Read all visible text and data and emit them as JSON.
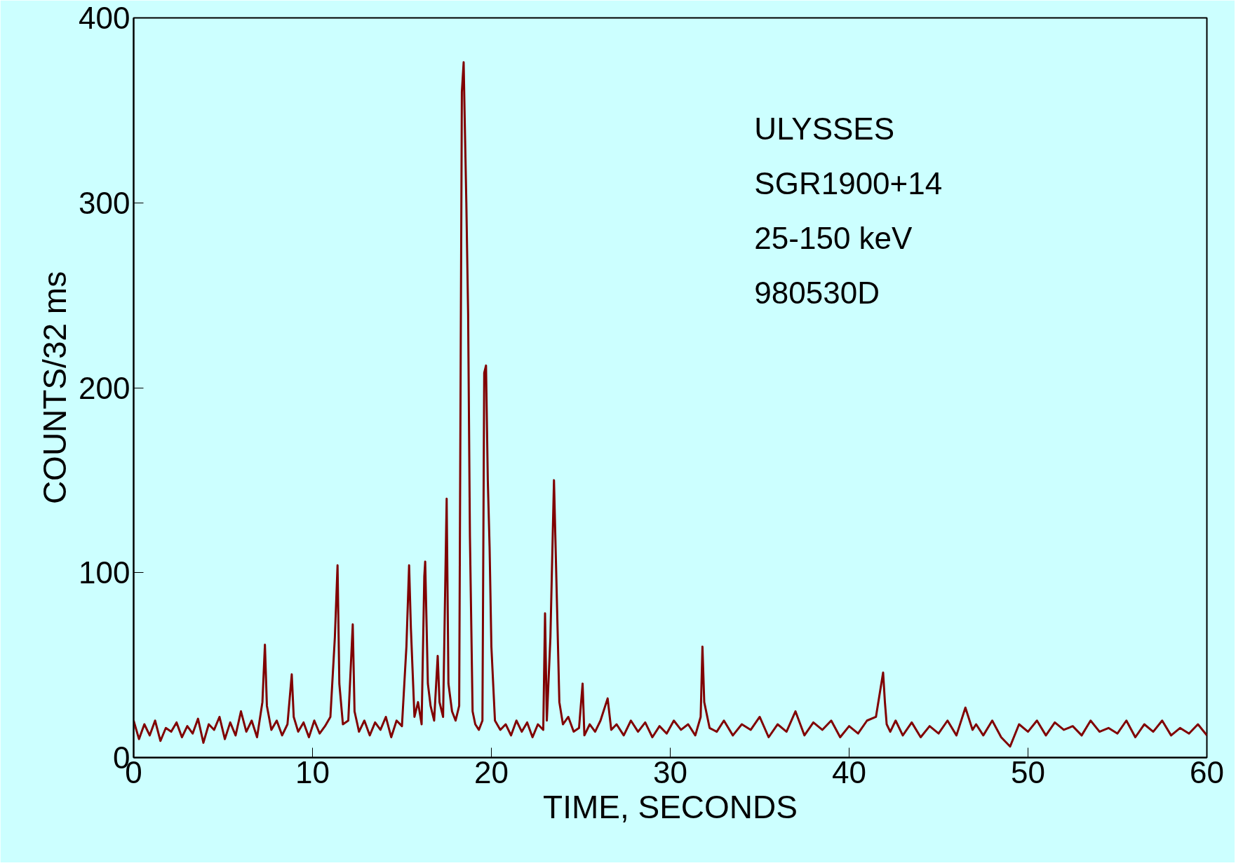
{
  "chart_data": {
    "type": "line",
    "xlabel": "TIME, SECONDS",
    "ylabel": "COUNTS/32 ms",
    "xlim": [
      0,
      60
    ],
    "ylim": [
      0,
      400
    ],
    "xticks": [
      0,
      10,
      20,
      30,
      40,
      50,
      60
    ],
    "yticks": [
      0,
      100,
      200,
      300,
      400
    ],
    "grid": false,
    "marker": "none",
    "line_style": "solid",
    "annotations": [
      "ULYSSES",
      "SGR1900+14",
      "25-150 keV",
      "980530D"
    ],
    "series": [
      {
        "color": "#800000",
        "x": [
          0,
          0.3,
          0.6,
          0.9,
          1.2,
          1.5,
          1.8,
          2.1,
          2.4,
          2.7,
          3.0,
          3.3,
          3.6,
          3.9,
          4.2,
          4.5,
          4.8,
          5.1,
          5.4,
          5.7,
          6.0,
          6.3,
          6.6,
          6.9,
          7.2,
          7.34,
          7.45,
          7.7,
          8.0,
          8.3,
          8.6,
          8.84,
          8.95,
          9.2,
          9.5,
          9.8,
          10.1,
          10.4,
          10.7,
          11.0,
          11.25,
          11.4,
          11.5,
          11.7,
          12.0,
          12.25,
          12.35,
          12.6,
          12.9,
          13.2,
          13.5,
          13.8,
          14.1,
          14.4,
          14.7,
          15.0,
          15.25,
          15.4,
          15.5,
          15.7,
          15.9,
          16.1,
          16.25,
          16.3,
          16.45,
          16.6,
          16.8,
          17.0,
          17.1,
          17.3,
          17.5,
          17.6,
          17.8,
          18.0,
          18.2,
          18.35,
          18.45,
          18.5,
          18.6,
          18.7,
          18.8,
          18.95,
          19.1,
          19.3,
          19.5,
          19.6,
          19.7,
          19.8,
          19.9,
          20.0,
          20.2,
          20.5,
          20.8,
          21.1,
          21.4,
          21.7,
          22.0,
          22.3,
          22.6,
          22.9,
          23.0,
          23.1,
          23.3,
          23.5,
          23.6,
          23.8,
          24.0,
          24.3,
          24.6,
          24.9,
          25.1,
          25.2,
          25.5,
          25.8,
          26.1,
          26.5,
          26.7,
          27.0,
          27.4,
          27.8,
          28.2,
          28.6,
          29.0,
          29.4,
          29.8,
          30.2,
          30.6,
          31.0,
          31.4,
          31.7,
          31.8,
          31.9,
          32.2,
          32.6,
          33.0,
          33.5,
          34.0,
          34.5,
          35.0,
          35.5,
          36.0,
          36.5,
          37.0,
          37.5,
          38.0,
          38.5,
          39.0,
          39.5,
          40.0,
          40.5,
          41.0,
          41.5,
          41.9,
          42.0,
          42.1,
          42.3,
          42.6,
          43.0,
          43.5,
          44.0,
          44.5,
          45.0,
          45.5,
          46.0,
          46.5,
          46.9,
          47.1,
          47.5,
          48.0,
          48.5,
          49.0,
          49.5,
          50.0,
          50.5,
          51.0,
          51.5,
          52.0,
          52.5,
          53.0,
          53.5,
          54.0,
          54.5,
          55.0,
          55.5,
          56.0,
          56.5,
          57.0,
          57.5,
          58.0,
          58.5,
          59.0,
          59.5,
          60.0
        ],
        "values": [
          20,
          10,
          18,
          12,
          20,
          9,
          16,
          14,
          19,
          11,
          17,
          13,
          21,
          8,
          18,
          15,
          22,
          10,
          19,
          12,
          25,
          14,
          20,
          11,
          30,
          61,
          28,
          15,
          20,
          12,
          18,
          45,
          22,
          14,
          19,
          11,
          20,
          13,
          17,
          22,
          65,
          104,
          40,
          18,
          20,
          72,
          25,
          14,
          20,
          12,
          19,
          15,
          22,
          11,
          20,
          17,
          60,
          104,
          70,
          22,
          30,
          18,
          98,
          106,
          40,
          28,
          20,
          55,
          30,
          22,
          140,
          40,
          25,
          20,
          28,
          360,
          376,
          350,
          300,
          240,
          120,
          25,
          18,
          15,
          20,
          208,
          212,
          150,
          114,
          60,
          20,
          15,
          18,
          12,
          20,
          14,
          19,
          11,
          18,
          15,
          78,
          20,
          65,
          150,
          110,
          30,
          18,
          22,
          14,
          16,
          40,
          12,
          18,
          14,
          20,
          32,
          15,
          18,
          12,
          20,
          14,
          19,
          11,
          17,
          13,
          20,
          15,
          18,
          12,
          22,
          60,
          30,
          16,
          14,
          20,
          12,
          18,
          15,
          22,
          11,
          18,
          14,
          25,
          12,
          19,
          15,
          20,
          11,
          17,
          13,
          20,
          22,
          46,
          30,
          18,
          14,
          20,
          12,
          19,
          11,
          17,
          13,
          20,
          12,
          27,
          15,
          18,
          12,
          20,
          11,
          6,
          18,
          14,
          20,
          12,
          19,
          15,
          17,
          12,
          20,
          14,
          16,
          13,
          20,
          11,
          18,
          14,
          20,
          12,
          16,
          13,
          18,
          12
        ]
      }
    ]
  }
}
